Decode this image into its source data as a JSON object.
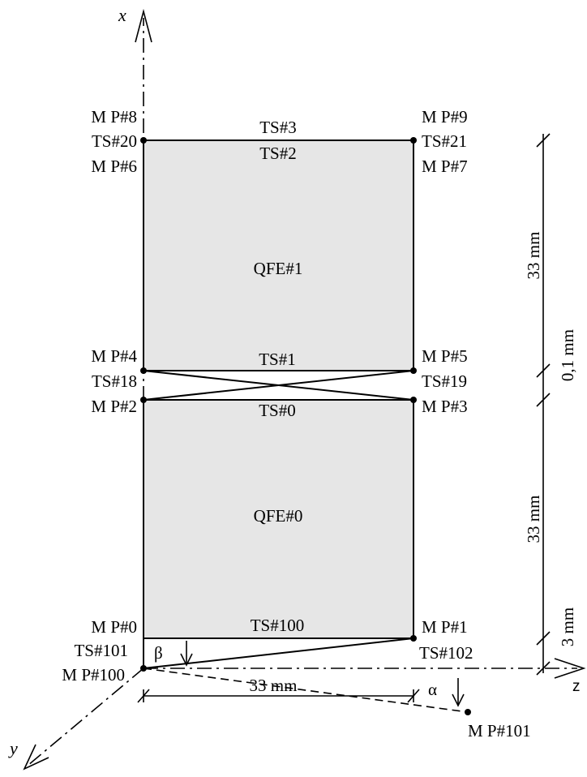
{
  "axes": {
    "x": "x",
    "y": "y",
    "z": "z"
  },
  "elements": {
    "upper": "QFE#1",
    "lower": "QFE#0"
  },
  "top": {
    "mp_left_top": "M P#8",
    "ts_left": "TS#20",
    "mp_left_bottom": "M P#6",
    "mp_right_top": "M P#9",
    "ts_right": "TS#21",
    "mp_right_bottom": "M P#7",
    "ts_above": "TS#3",
    "ts_below": "TS#2"
  },
  "interface": {
    "mp4": "M P#4",
    "ts18": "TS#18",
    "mp2": "M P#2",
    "mp5": "M P#5",
    "ts19": "TS#19",
    "mp3": "M P#3",
    "ts1": "TS#1",
    "ts0": "TS#0"
  },
  "base": {
    "mp0": "M P#0",
    "ts101": "TS#101",
    "mp100": "M P#100",
    "mp1": "M P#1",
    "ts100": "TS#100",
    "ts102": "TS#102",
    "mp101": "M P#101",
    "beta": "β",
    "alpha": "α"
  },
  "dimensions": {
    "upper_height": "33 mm",
    "gap": "0,1 mm",
    "lower_height": "33 mm",
    "offset": "3 mm",
    "width": "33 mm"
  }
}
